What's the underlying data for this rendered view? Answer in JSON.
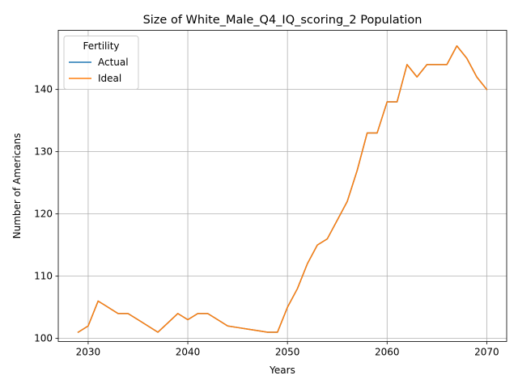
{
  "chart_data": {
    "type": "line",
    "title": "Size of White_Male_Q4_IQ_scoring_2 Population",
    "xlabel": "Years",
    "ylabel": "Number of Americans",
    "xlim": [
      2027,
      2072
    ],
    "ylim": [
      99.5,
      149.5
    ],
    "xticks": [
      2030,
      2040,
      2050,
      2060,
      2070
    ],
    "yticks": [
      100,
      110,
      120,
      130,
      140
    ],
    "grid": true,
    "legend": {
      "title": "Fertility",
      "placement": "top-left"
    },
    "x": [
      2029,
      2030,
      2031,
      2032,
      2033,
      2034,
      2035,
      2036,
      2037,
      2038,
      2039,
      2040,
      2041,
      2042,
      2043,
      2044,
      2045,
      2046,
      2047,
      2048,
      2049,
      2050,
      2051,
      2052,
      2053,
      2054,
      2055,
      2056,
      2057,
      2058,
      2059,
      2060,
      2061,
      2062,
      2063,
      2064,
      2065,
      2066,
      2067,
      2068,
      2069,
      2070
    ],
    "series": [
      {
        "name": "Actual",
        "color": "#1f77b4",
        "values": [
          101,
          102,
          106,
          105,
          104,
          104,
          103,
          102,
          101,
          102.5,
          104,
          103,
          104,
          104,
          103,
          102,
          101.75,
          101.5,
          101.25,
          101,
          101,
          105,
          108,
          112,
          115,
          116,
          119,
          122,
          127,
          133,
          133,
          138,
          138,
          144,
          142,
          144,
          144,
          144,
          147,
          145,
          142,
          140
        ]
      },
      {
        "name": "Ideal",
        "color": "#ff7f0e",
        "values": [
          101,
          102,
          106,
          105,
          104,
          104,
          103,
          102,
          101,
          102.5,
          104,
          103,
          104,
          104,
          103,
          102,
          101.75,
          101.5,
          101.25,
          101,
          101,
          105,
          108,
          112,
          115,
          116,
          119,
          122,
          127,
          133,
          133,
          138,
          138,
          144,
          142,
          144,
          144,
          144,
          147,
          145,
          142,
          140
        ]
      }
    ]
  }
}
